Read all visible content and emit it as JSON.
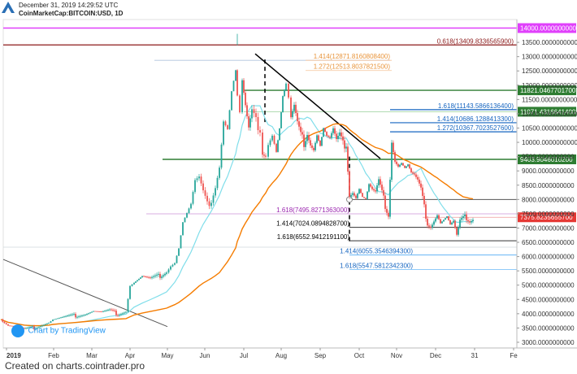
{
  "header": {
    "datetime": "December 31, 2019 14:29:52 UTC",
    "symbol": "CoinMarketCap:BITCOIN:USD, 1D"
  },
  "watermark": "Chart by TradingView",
  "footer": "Created on charts.cointrader.pro",
  "colors": {
    "up": "#26a69a",
    "down": "#ef5350",
    "ma_short": "#80deea",
    "ma_long": "#f57c00",
    "magenta": "#e040fb",
    "darkred": "#8b1a1a",
    "green": "#2e7d32",
    "blue": "#1565c0",
    "orange_fib": "#e8943a",
    "purple": "#9c27b0",
    "current": "#e53935"
  },
  "chart_data": {
    "type": "candlestick",
    "ylim": [
      2800,
      14300
    ],
    "x_ticks": [
      "2019",
      "Feb",
      "Mar",
      "Apr",
      "May",
      "Jun",
      "Jul",
      "Aug",
      "Sep",
      "Oct",
      "Nov",
      "Dec",
      "31",
      "Fe"
    ],
    "y_ticks": [
      "3000.0000000000",
      "3500.0000000000",
      "4000.0000000000",
      "4500.0000000000",
      "5000.0000000000",
      "5500.0000000000",
      "6000.0000000000",
      "6500.0000000000",
      "7000.0000000000",
      "7500.0000000000",
      "8000.0000000000",
      "8500.0000000000",
      "9000.0000000000",
      "9500.0000000000",
      "10000.0000000000",
      "10500.0000000000",
      "11000.0000000000",
      "11500.0000000000",
      "12000.0000000000",
      "12500.0000000000",
      "13000.0000000000",
      "13500.0000000000"
    ],
    "price_tags": [
      {
        "value": 14000,
        "label": "14000.0000000000",
        "color": "#e040fb"
      },
      {
        "value": 11821.04677017,
        "label": "11821.0467701700",
        "color": "#2e7d32"
      },
      {
        "value": 11071.43166414,
        "label": "11071.4316641400",
        "color": "#2e7d32"
      },
      {
        "value": 9403.90460102,
        "label": "9403.9046010200",
        "color": "#2e7d32"
      },
      {
        "value": 7375.82356557,
        "label": "7375.8235655700",
        "color": "#e53935"
      }
    ],
    "level_labels": [
      {
        "text": "0.618(13409.8336565900)",
        "value": 13409.83,
        "color": "#8b1a1a"
      },
      {
        "text": "1.414(12871.8160808400)",
        "value": 12871.82,
        "color": "#e8943a"
      },
      {
        "text": "1.272(12513.8037821500)",
        "value": 12513.8,
        "color": "#e8943a"
      },
      {
        "text": "1.618(11143.5866136400)",
        "value": 11143.59,
        "color": "#1565c0"
      },
      {
        "text": "1.414(10686.1288413300)",
        "value": 10686.13,
        "color": "#1565c0"
      },
      {
        "text": "1.272(10367.7023527600)",
        "value": 10367.7,
        "color": "#1565c0"
      },
      {
        "text": "1.618(7495.8271363000)",
        "value": 7495.83,
        "color": "#9c27b0"
      },
      {
        "text": "1.414(7024.0894828700)",
        "value": 7024.09,
        "color": "#000000"
      },
      {
        "text": "1.618(6552.9412191100)",
        "value": 6552.94,
        "color": "#000000"
      },
      {
        "text": "1.414(6055.3546394300)",
        "value": 6055.35,
        "color": "#1565c0"
      },
      {
        "text": "1.618(5547.5812342300)",
        "value": 5547.58,
        "color": "#1565c0"
      }
    ],
    "close_path": [
      [
        1,
        3800
      ],
      [
        10,
        3600
      ],
      [
        20,
        3550
      ],
      [
        30,
        3450
      ],
      [
        40,
        3500
      ],
      [
        50,
        3600
      ],
      [
        60,
        3700
      ],
      [
        65,
        3800
      ],
      [
        75,
        3850
      ],
      [
        85,
        3900
      ],
      [
        95,
        3950
      ],
      [
        105,
        4000
      ],
      [
        115,
        4100
      ],
      [
        125,
        4050
      ],
      [
        135,
        4100
      ],
      [
        145,
        4000
      ],
      [
        155,
        4100
      ],
      [
        160,
        5000
      ],
      [
        165,
        5100
      ],
      [
        175,
        5300
      ],
      [
        185,
        5200
      ],
      [
        195,
        5300
      ],
      [
        205,
        5500
      ],
      [
        210,
        5700
      ],
      [
        215,
        5800
      ],
      [
        220,
        6300
      ],
      [
        225,
        7200
      ],
      [
        230,
        7500
      ],
      [
        235,
        7800
      ],
      [
        240,
        8600
      ],
      [
        245,
        8700
      ],
      [
        250,
        8200
      ],
      [
        255,
        7800
      ],
      [
        260,
        8000
      ],
      [
        265,
        8500
      ],
      [
        270,
        9200
      ],
      [
        275,
        10800
      ],
      [
        280,
        10500
      ],
      [
        285,
        11800
      ],
      [
        290,
        12500
      ],
      [
        292,
        11600
      ],
      [
        295,
        11000
      ],
      [
        298,
        12100
      ],
      [
        302,
        11200
      ],
      [
        306,
        10400
      ],
      [
        310,
        11000
      ],
      [
        315,
        10700
      ],
      [
        320,
        10500
      ],
      [
        323,
        9700
      ],
      [
        327,
        9600
      ],
      [
        330,
        10000
      ],
      [
        335,
        10300
      ],
      [
        340,
        9700
      ],
      [
        344,
        10500
      ],
      [
        348,
        11600
      ],
      [
        352,
        12000
      ],
      [
        355,
        11500
      ],
      [
        358,
        10800
      ],
      [
        362,
        11200
      ],
      [
        366,
        10600
      ],
      [
        370,
        10200
      ],
      [
        374,
        10000
      ],
      [
        378,
        10400
      ],
      [
        382,
        10000
      ],
      [
        386,
        9800
      ],
      [
        390,
        10300
      ],
      [
        394,
        9900
      ],
      [
        398,
        10500
      ],
      [
        402,
        10200
      ],
      [
        406,
        10100
      ],
      [
        410,
        10400
      ],
      [
        414,
        10000
      ],
      [
        418,
        10200
      ],
      [
        422,
        9900
      ],
      [
        426,
        10000
      ],
      [
        430,
        8200
      ],
      [
        434,
        8300
      ],
      [
        438,
        8100
      ],
      [
        442,
        8400
      ],
      [
        446,
        8100
      ],
      [
        450,
        8000
      ],
      [
        454,
        8500
      ],
      [
        458,
        8300
      ],
      [
        462,
        8200
      ],
      [
        466,
        8600
      ],
      [
        470,
        8200
      ],
      [
        474,
        7800
      ],
      [
        478,
        7500
      ],
      [
        482,
        10100
      ],
      [
        486,
        9400
      ],
      [
        490,
        9200
      ],
      [
        494,
        9300
      ],
      [
        498,
        9100
      ],
      [
        502,
        9200
      ],
      [
        506,
        8900
      ],
      [
        510,
        8800
      ],
      [
        514,
        8600
      ],
      [
        518,
        8300
      ],
      [
        522,
        7700
      ],
      [
        526,
        7200
      ],
      [
        530,
        7100
      ],
      [
        534,
        7300
      ],
      [
        538,
        7500
      ],
      [
        542,
        7200
      ],
      [
        546,
        7300
      ],
      [
        550,
        7400
      ],
      [
        554,
        7100
      ],
      [
        558,
        7200
      ],
      [
        562,
        6700
      ],
      [
        566,
        7200
      ],
      [
        570,
        7300
      ],
      [
        574,
        7400
      ],
      [
        578,
        7300
      ],
      [
        582,
        7370
      ]
    ]
  }
}
